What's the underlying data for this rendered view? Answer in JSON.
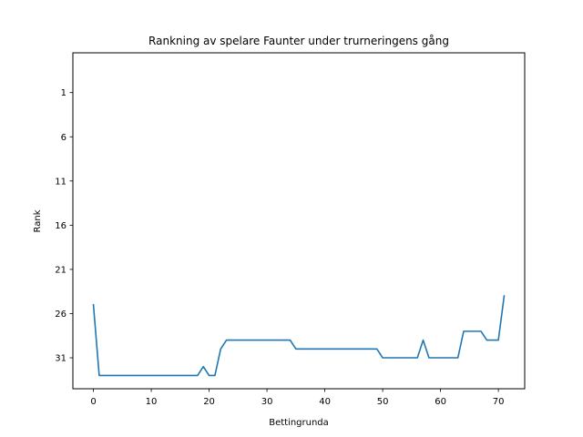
{
  "chart_data": {
    "type": "line",
    "title": "Rankning av spelare Faunter under trurneringens gång",
    "xlabel": "Bettingrunda",
    "ylabel": "Rank",
    "xlim": [
      -3.55,
      74.55
    ],
    "ylim": [
      34.5,
      -3.5
    ],
    "y_inverted": true,
    "xticks": [
      0,
      10,
      20,
      30,
      40,
      50,
      60,
      70
    ],
    "yticks": [
      1,
      6,
      11,
      16,
      21,
      26,
      31
    ],
    "grid": false,
    "series": [
      {
        "color": "#1f77b4",
        "x": [
          0,
          1,
          2,
          3,
          4,
          5,
          6,
          7,
          8,
          9,
          10,
          11,
          12,
          13,
          14,
          15,
          16,
          17,
          18,
          19,
          20,
          21,
          22,
          23,
          24,
          25,
          26,
          27,
          28,
          29,
          30,
          31,
          32,
          33,
          34,
          35,
          36,
          37,
          38,
          39,
          40,
          41,
          42,
          43,
          44,
          45,
          46,
          47,
          48,
          49,
          50,
          51,
          52,
          53,
          54,
          55,
          56,
          57,
          58,
          59,
          60,
          61,
          62,
          63,
          64,
          65,
          66,
          67,
          68,
          69,
          70,
          71
        ],
        "y": [
          25,
          33,
          33,
          33,
          33,
          33,
          33,
          33,
          33,
          33,
          33,
          33,
          33,
          33,
          33,
          33,
          33,
          33,
          33,
          32,
          33,
          33,
          30,
          29,
          29,
          29,
          29,
          29,
          29,
          29,
          29,
          29,
          29,
          29,
          29,
          30,
          30,
          30,
          30,
          30,
          30,
          30,
          30,
          30,
          30,
          30,
          30,
          30,
          30,
          30,
          31,
          31,
          31,
          31,
          31,
          31,
          31,
          29,
          31,
          31,
          31,
          31,
          31,
          31,
          28,
          28,
          28,
          28,
          29,
          29,
          29,
          24
        ]
      }
    ]
  }
}
